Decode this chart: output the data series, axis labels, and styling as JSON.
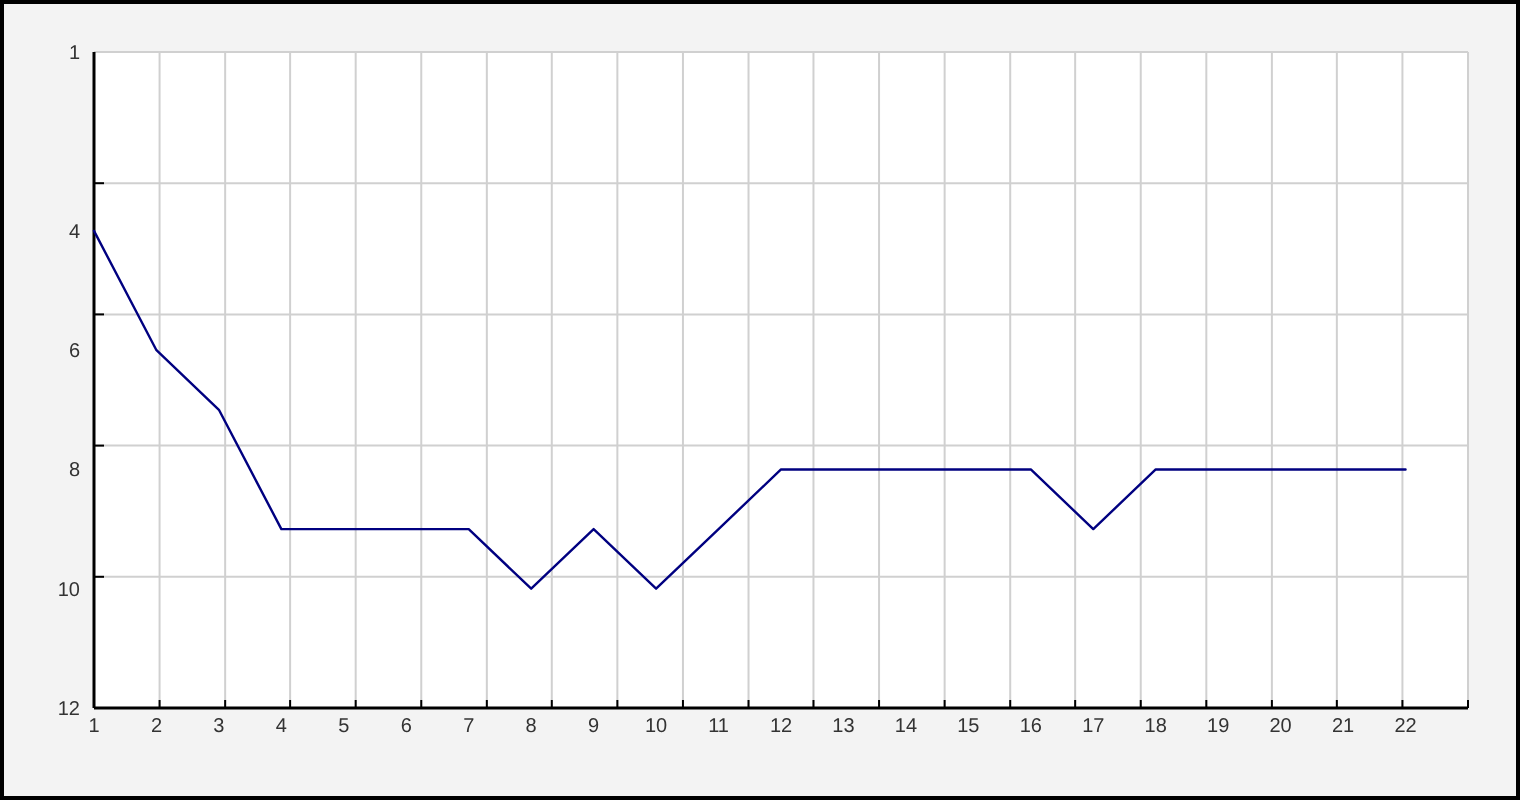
{
  "chart_data": {
    "type": "line",
    "x": [
      1,
      2,
      3,
      4,
      5,
      6,
      7,
      8,
      9,
      10,
      11,
      12,
      13,
      14,
      15,
      16,
      17,
      18,
      19,
      20,
      21,
      22
    ],
    "series": [
      {
        "color": "#000080",
        "values": [
          4,
          6,
          7,
          9,
          9,
          9,
          9,
          10,
          9,
          10,
          9,
          8,
          8,
          8,
          8,
          8,
          9,
          8,
          8,
          8,
          8,
          8
        ]
      }
    ],
    "xlim": [
      1,
      23
    ],
    "xticks": [
      1,
      2,
      3,
      4,
      5,
      6,
      7,
      8,
      9,
      10,
      11,
      12,
      13,
      14,
      15,
      16,
      17,
      18,
      19,
      20,
      21,
      22,
      {
        "value": 2.05,
        "label": null
      },
      {
        "value": 3.1,
        "label": null
      },
      {
        "value": 4.14,
        "label": null
      },
      {
        "value": 5.19,
        "label": null
      },
      {
        "value": 6.24,
        "label": null
      },
      {
        "value": 7.29,
        "label": null
      },
      {
        "value": 8.33,
        "label": null
      },
      {
        "value": 9.38,
        "label": null
      },
      {
        "value": 10.43,
        "label": null
      },
      {
        "value": 11.48,
        "label": null
      },
      {
        "value": 12.52,
        "label": null
      },
      {
        "value": 13.57,
        "label": null
      },
      {
        "value": 14.62,
        "label": null
      },
      {
        "value": 15.67,
        "label": null
      },
      {
        "value": 16.71,
        "label": null
      },
      {
        "value": 17.76,
        "label": null
      },
      {
        "value": 18.81,
        "label": null
      },
      {
        "value": 19.86,
        "label": null
      },
      {
        "value": 20.9,
        "label": null
      },
      {
        "value": 21.95,
        "label": null
      },
      {
        "value": 23,
        "label": null
      }
    ],
    "ylim": [
      12,
      1
    ],
    "yticks": [
      1,
      4,
      6,
      8,
      10,
      12,
      {
        "value": 3.2,
        "label": null
      },
      {
        "value": 5.4,
        "label": null
      },
      {
        "value": 7.6,
        "label": null
      },
      {
        "value": 9.8,
        "label": null
      }
    ],
    "grid": true
  }
}
